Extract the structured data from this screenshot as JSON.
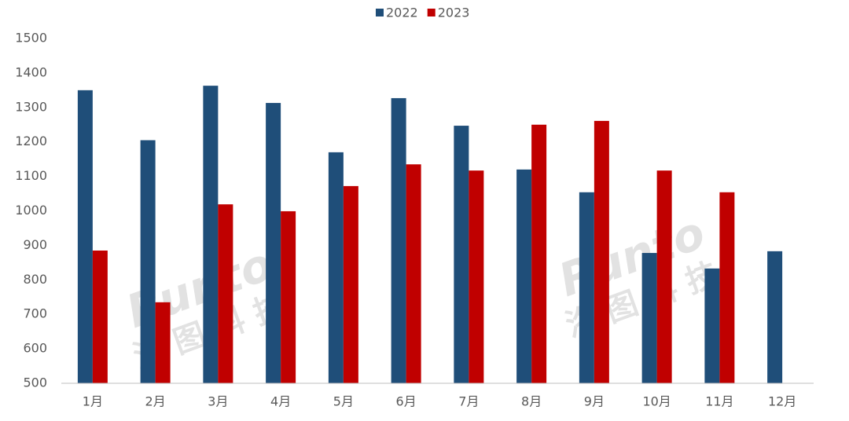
{
  "chart_data": {
    "type": "bar",
    "categories": [
      "1月",
      "2月",
      "3月",
      "4月",
      "5月",
      "6月",
      "7月",
      "8月",
      "9月",
      "10月",
      "11月",
      "12月"
    ],
    "series": [
      {
        "name": "2022",
        "color": "#1f4e79",
        "values": [
          1350,
          1205,
          1363,
          1313,
          1170,
          1327,
          1247,
          1120,
          1054,
          878,
          833,
          883
        ]
      },
      {
        "name": "2023",
        "color": "#c00000",
        "values": [
          885,
          735,
          1019,
          999,
          1072,
          1135,
          1117,
          1250,
          1261,
          1117,
          1054,
          null
        ]
      }
    ],
    "ylim": [
      500,
      1500
    ],
    "yticks": [
      500,
      600,
      700,
      800,
      900,
      1000,
      1100,
      1200,
      1300,
      1400,
      1500
    ],
    "grid": false,
    "legend": "top",
    "watermark": "Runto",
    "watermark_sub": "洛图科技"
  }
}
